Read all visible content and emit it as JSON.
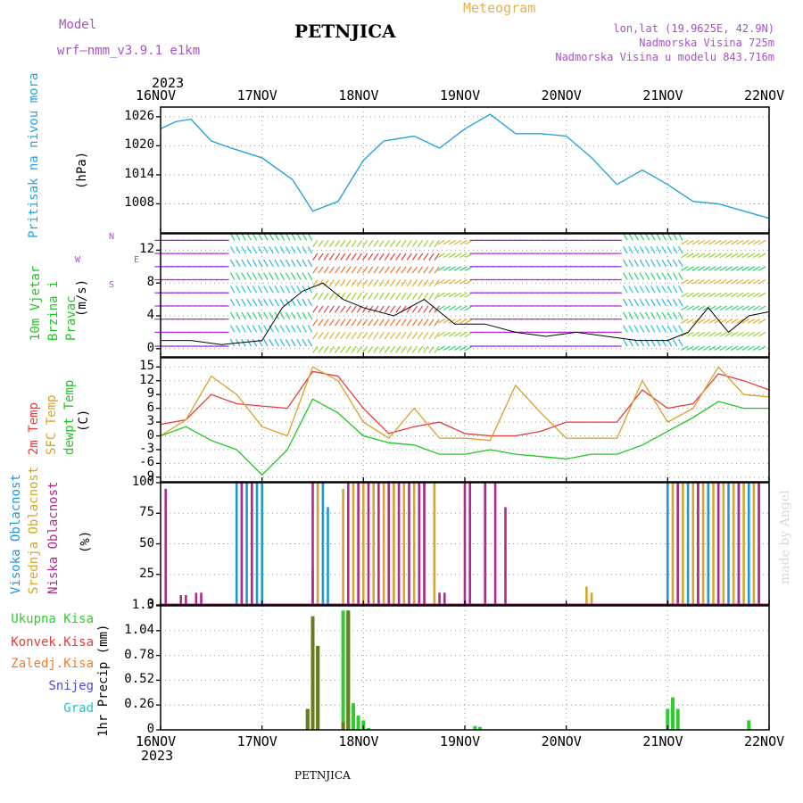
{
  "header": {
    "model_label": "Model",
    "model_name": "wrf–nmm_v3.9.1  e1km",
    "title": "PETNJICA",
    "meteogram": "Meteogram",
    "lonlat": "lon,lat (19.9625E, 42.9N)",
    "elevation": "Nadmorska Visina 725m",
    "model_elevation": "Nadmorska Visina u modelu 843.716m",
    "footer": "PETNJICA",
    "watermark": "made by Angel"
  },
  "colors": {
    "pressure": "#26a3e0",
    "temp2m": "#e83a3a",
    "sfc": "#d9a12a",
    "dew": "#1ec81e",
    "high": "#1f97e0",
    "mid": "#d6a52a",
    "low": "#b02a8c",
    "precip_total": "#2ecc2e",
    "precip_conv": "#6b7a1e"
  },
  "chart_data": [
    {
      "type": "line",
      "panel": "pressure",
      "ylabel": "Pritisak na nivou mora",
      "unit": "(hPa)",
      "year": "2023",
      "x_ticks": [
        "16NOV",
        "17NOV",
        "18NOV",
        "19NOV",
        "20NOV",
        "21NOV",
        "22NOV"
      ],
      "ylim": [
        1002,
        1028
      ],
      "yticks": [
        1008,
        1014,
        1020,
        1026
      ],
      "x": [
        0,
        0.15,
        0.3,
        0.5,
        0.7,
        1.0,
        1.3,
        1.5,
        1.75,
        2.0,
        2.2,
        2.5,
        2.75,
        3.0,
        3.25,
        3.5,
        3.75,
        4.0,
        4.25,
        4.5,
        4.75,
        5.0,
        5.25,
        5.5,
        5.75,
        6.0
      ],
      "values": [
        1023.5,
        1025,
        1025.5,
        1021,
        1019.5,
        1017.5,
        1013,
        1006.5,
        1008.5,
        1017,
        1021,
        1022,
        1019.5,
        1023.5,
        1026.5,
        1022.5,
        1022.5,
        1022,
        1017.5,
        1012,
        1015,
        1012,
        1008.5,
        1008,
        1006.5,
        1005
      ]
    },
    {
      "type": "line",
      "panel": "wind",
      "ylabel": "10m Vjetar Brzina i Pravac",
      "unit": "(m/s)",
      "legend_compass": [
        "N",
        "W",
        "E",
        "S"
      ],
      "ylim": [
        -1,
        14
      ],
      "yticks": [
        0,
        4,
        8,
        12
      ],
      "x": [
        0,
        0.3,
        0.6,
        1.0,
        1.2,
        1.4,
        1.6,
        1.8,
        2.0,
        2.3,
        2.6,
        2.9,
        3.2,
        3.5,
        3.8,
        4.1,
        4.4,
        4.7,
        5.0,
        5.2,
        5.4,
        5.6,
        5.8,
        6.0
      ],
      "values": [
        1,
        1,
        0.5,
        1,
        5,
        7,
        8,
        6,
        5,
        4,
        6,
        3,
        3,
        2,
        1.5,
        2,
        1.5,
        1,
        1,
        2,
        5,
        2,
        4,
        4.5
      ]
    },
    {
      "type": "line",
      "panel": "temperature",
      "ylabel": "2m Temp SFC Temp dewpt Temp",
      "unit": "(C)",
      "ylim": [
        -10,
        17
      ],
      "yticks": [
        -9,
        -6,
        -3,
        0,
        3,
        6,
        9,
        12,
        15
      ],
      "x": [
        0,
        0.25,
        0.5,
        0.75,
        1.0,
        1.25,
        1.5,
        1.75,
        2.0,
        2.25,
        2.5,
        2.75,
        3.0,
        3.25,
        3.5,
        3.75,
        4.0,
        4.25,
        4.5,
        4.75,
        5.0,
        5.25,
        5.5,
        5.75,
        6.0
      ],
      "series": [
        {
          "name": "2m Temp",
          "values": [
            2.5,
            3.5,
            9,
            7,
            6.5,
            6,
            14,
            13,
            6,
            0.5,
            2,
            3,
            0.5,
            0,
            0,
            1,
            3,
            3,
            3,
            10,
            6,
            7,
            13.5,
            12,
            10
          ]
        },
        {
          "name": "SFC Temp",
          "values": [
            0,
            3.5,
            13,
            9,
            2,
            0,
            15,
            12,
            3,
            -0.5,
            6,
            -0.5,
            -0.5,
            -1,
            11,
            5,
            -0.5,
            -0.5,
            -0.5,
            12,
            3,
            6,
            15,
            9,
            8.5
          ]
        },
        {
          "name": "dewpt Temp",
          "values": [
            0,
            2,
            -1,
            -3,
            -8.5,
            -3,
            8,
            5,
            0,
            -1.5,
            -2,
            -4,
            -4,
            -3,
            -4,
            -4.5,
            -5,
            -4,
            -4,
            -2,
            1,
            4,
            7.5,
            6,
            6
          ]
        }
      ]
    },
    {
      "type": "bar",
      "panel": "clouds",
      "ylabel": "Visoka Oblacnost Srednja Oblacnost Niska Oblacnost",
      "unit": "(%)",
      "ylim": [
        0,
        100
      ],
      "yticks": [
        0,
        25,
        50,
        75,
        100
      ],
      "series": [
        {
          "name": "Visoka Oblacnost",
          "x": [
            0.75,
            0.8,
            0.85,
            0.9,
            0.95,
            1.0,
            1.5,
            1.55,
            1.6,
            1.65,
            5.0,
            5.1,
            5.2,
            5.3,
            5.4,
            5.5,
            5.6,
            5.7,
            5.8,
            5.9
          ],
          "values": [
            100,
            100,
            100,
            100,
            100,
            100,
            30,
            100,
            100,
            80,
            100,
            100,
            100,
            100,
            100,
            100,
            100,
            100,
            100,
            100
          ]
        },
        {
          "name": "Srednja Oblacnost",
          "x": [
            1.55,
            1.8,
            1.9,
            2.0,
            2.1,
            2.2,
            2.3,
            2.4,
            2.5,
            2.6,
            2.7,
            4.2,
            4.25,
            5.05,
            5.15,
            5.25,
            5.35,
            5.45,
            5.55,
            5.65,
            5.75,
            5.85
          ],
          "values": [
            100,
            95,
            100,
            100,
            100,
            100,
            100,
            100,
            100,
            100,
            100,
            15,
            10,
            100,
            100,
            100,
            100,
            100,
            100,
            100,
            100,
            100
          ]
        },
        {
          "name": "Niska Oblacnost",
          "x": [
            0.05,
            0.2,
            0.25,
            0.35,
            0.4,
            0.8,
            0.9,
            1.5,
            1.85,
            1.95,
            2.05,
            2.15,
            2.25,
            2.35,
            2.45,
            2.55,
            2.6,
            2.75,
            2.8,
            3.0,
            3.05,
            3.2,
            3.3,
            3.4,
            5.1,
            5.3,
            5.5,
            5.7,
            5.9
          ],
          "values": [
            95,
            8,
            8,
            10,
            10,
            100,
            100,
            100,
            100,
            100,
            100,
            100,
            100,
            100,
            100,
            100,
            100,
            10,
            10,
            100,
            100,
            100,
            100,
            80,
            100,
            100,
            100,
            100,
            100
          ]
        }
      ]
    },
    {
      "type": "bar",
      "panel": "precipitation",
      "ylabel": "1hr Precip (mm)",
      "legend": [
        "Ukupna Kisa",
        "Konvek.Kisa",
        "Zaledj.Kisa",
        "Snijeg",
        "Grad"
      ],
      "x_ticks": [
        "16NOV",
        "17NOV",
        "18NOV",
        "19NOV",
        "20NOV",
        "21NOV",
        "22NOV"
      ],
      "year": "2023",
      "ylim": [
        0,
        1.3
      ],
      "yticks": [
        0,
        0.26,
        0.52,
        0.78,
        1.04,
        1.3
      ],
      "x": [
        1.45,
        1.5,
        1.55,
        1.8,
        1.85,
        1.9,
        1.95,
        2.0,
        2.05,
        3.1,
        3.15,
        5.0,
        5.05,
        5.1,
        5.8
      ],
      "values": [
        0.22,
        1.19,
        0.88,
        1.25,
        1.25,
        0.28,
        0.15,
        0.1,
        0.02,
        0.04,
        0.03,
        0.22,
        0.34,
        0.22,
        0.1
      ],
      "convective": [
        0.22,
        1.19,
        0.88,
        0.08,
        1.25,
        0.0,
        0.0,
        0.0,
        0.0,
        0.0,
        0.0,
        0.0,
        0.0,
        0.0,
        0.0
      ]
    }
  ]
}
